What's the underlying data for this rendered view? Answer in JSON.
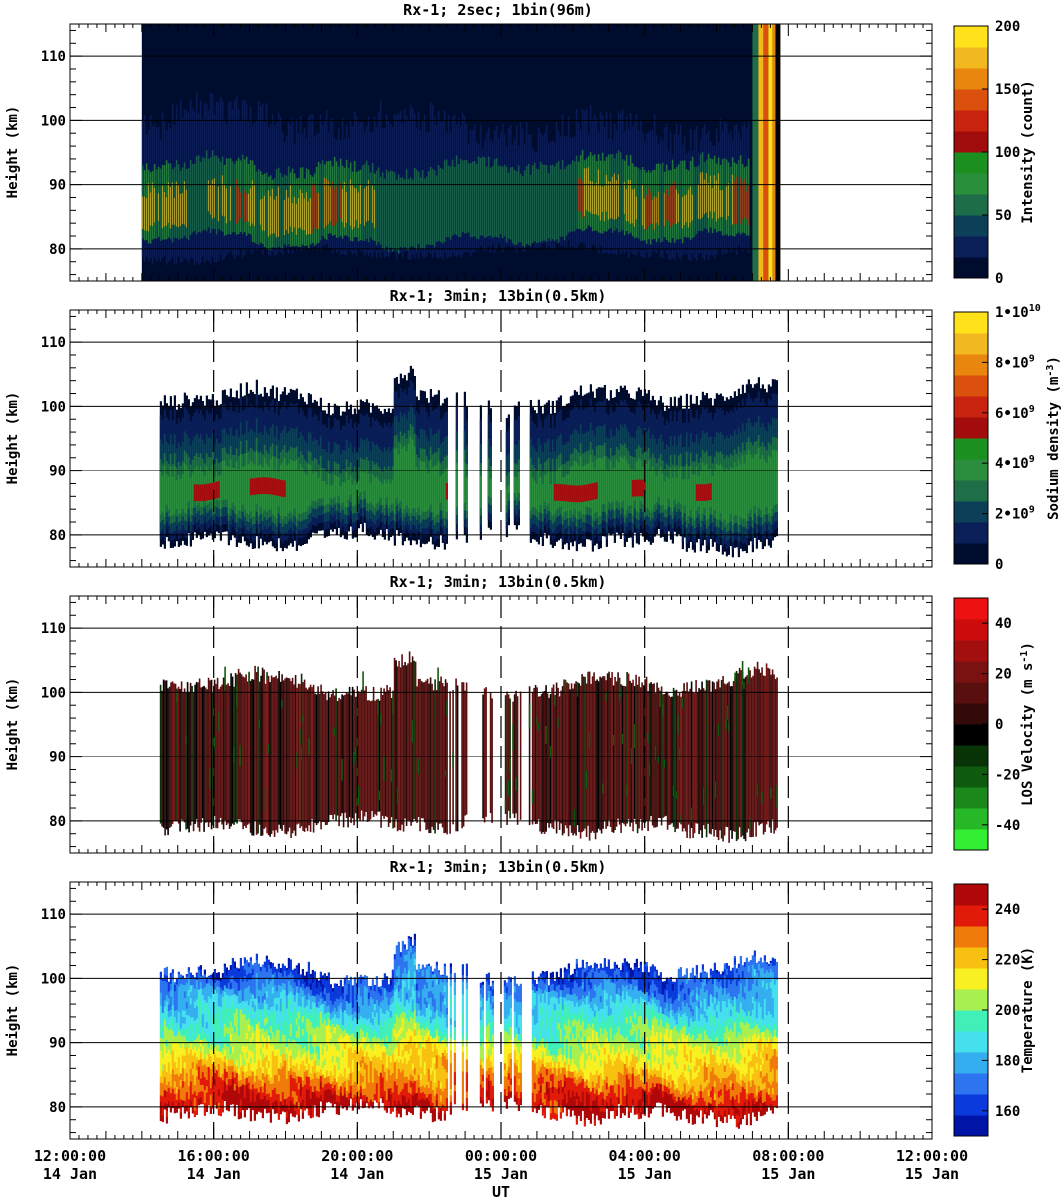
{
  "x_axis": {
    "title": "UT",
    "ticks": [
      {
        "time": "12:00:00",
        "date": "14 Jan"
      },
      {
        "time": "16:00:00",
        "date": "14 Jan"
      },
      {
        "time": "20:00:00",
        "date": "14 Jan"
      },
      {
        "time": "00:00:00",
        "date": "15 Jan"
      },
      {
        "time": "04:00:00",
        "date": "15 Jan"
      },
      {
        "time": "08:00:00",
        "date": "15 Jan"
      },
      {
        "time": "12:00:00",
        "date": "15 Jan"
      }
    ]
  },
  "colors": {
    "intensity": [
      "#000c2e",
      "#0a1e58",
      "#0c3f58",
      "#1d6e48",
      "#2a8f3a",
      "#1b8f1f",
      "#a00c0c",
      "#c8230e",
      "#db500c",
      "#e8860e",
      "#f2b820",
      "#ffe21a"
    ],
    "density": [
      "#000c2e",
      "#0a1e58",
      "#0c3f58",
      "#1e6e48",
      "#2b8e3e",
      "#1b8f1f",
      "#a20c0c",
      "#c8230e",
      "#db500c",
      "#e8860e",
      "#f2b820",
      "#ffe21a"
    ],
    "velocity": [
      "#33ee33",
      "#26b826",
      "#1a881a",
      "#0f5a0f",
      "#073307",
      "#000000",
      "#330a0a",
      "#5a0f0f",
      "#7a1212",
      "#a30f0f",
      "#cc0c0c",
      "#ee1111"
    ],
    "temperature": [
      "#0015a8",
      "#0a3adc",
      "#2c74f0",
      "#35aef0",
      "#45e0ee",
      "#40f0b8",
      "#a8f050",
      "#f8f020",
      "#f8c010",
      "#f07a0a",
      "#e21a0a",
      "#b00808"
    ]
  },
  "chart_data": [
    {
      "type": "heatmap",
      "title": "Rx-1;  2sec; 1bin(96m)",
      "ylabel": "Height (km)",
      "ylim": [
        75,
        115
      ],
      "yticks": [
        "80",
        "90",
        "100",
        "110"
      ],
      "x_range_hours_after_14Jan_12UT": [
        0,
        24
      ],
      "data_coverage_hours": [
        2.0,
        19.7
      ],
      "sodium_layer_km": [
        79,
        97
      ],
      "peak_height_km": 86,
      "colorbar": {
        "label": "Intensity (count)",
        "range": [
          0,
          200
        ],
        "ticks": [
          "0",
          "50",
          "100",
          "150",
          "200"
        ]
      }
    },
    {
      "type": "heatmap",
      "title": "Rx-1; 3min; 13bin(0.5km)",
      "ylabel": "Height (km)",
      "ylim": [
        75,
        115
      ],
      "yticks": [
        "80",
        "90",
        "100",
        "110"
      ],
      "data_coverage_hours": [
        2.5,
        19.7
      ],
      "gaps_hours": [
        [
          11.05,
          11.4
        ],
        [
          11.75,
          12.05
        ],
        [
          12.55,
          12.75
        ]
      ],
      "layer_top_km": [
        103,
        107
      ],
      "layer_bottom_km": [
        77,
        82
      ],
      "peak_height_km": 87,
      "colorbar": {
        "label": "Sodium density (m^-3)",
        "range": [
          0,
          10000000000.0
        ],
        "ticks": [
          "0",
          "2•10^9",
          "4•10^9",
          "6•10^9",
          "8•10^9",
          "1•10^10"
        ]
      }
    },
    {
      "type": "heatmap",
      "title": "Rx-1; 3min; 13bin(0.5km)",
      "ylabel": "Height (km)",
      "ylim": [
        75,
        115
      ],
      "yticks": [
        "80",
        "90",
        "100",
        "110"
      ],
      "data_coverage_hours": [
        2.5,
        19.7
      ],
      "colorbar": {
        "label": "LOS Velocity (m s^-1)",
        "range": [
          -50,
          50
        ],
        "ticks": [
          "-40",
          "-20",
          "0",
          "20",
          "40"
        ]
      }
    },
    {
      "type": "heatmap",
      "title": "Rx-1; 3min; 13bin(0.5km)",
      "ylabel": "Height (km)",
      "ylim": [
        75,
        115
      ],
      "yticks": [
        "80",
        "90",
        "100",
        "110"
      ],
      "data_coverage_hours": [
        2.5,
        19.7
      ],
      "temperature_low_height_K": 240,
      "temperature_high_height_K": 165,
      "colorbar": {
        "label": "Temperature (K)",
        "range": [
          150,
          250
        ],
        "ticks": [
          "160",
          "180",
          "200",
          "220",
          "240"
        ]
      }
    }
  ]
}
